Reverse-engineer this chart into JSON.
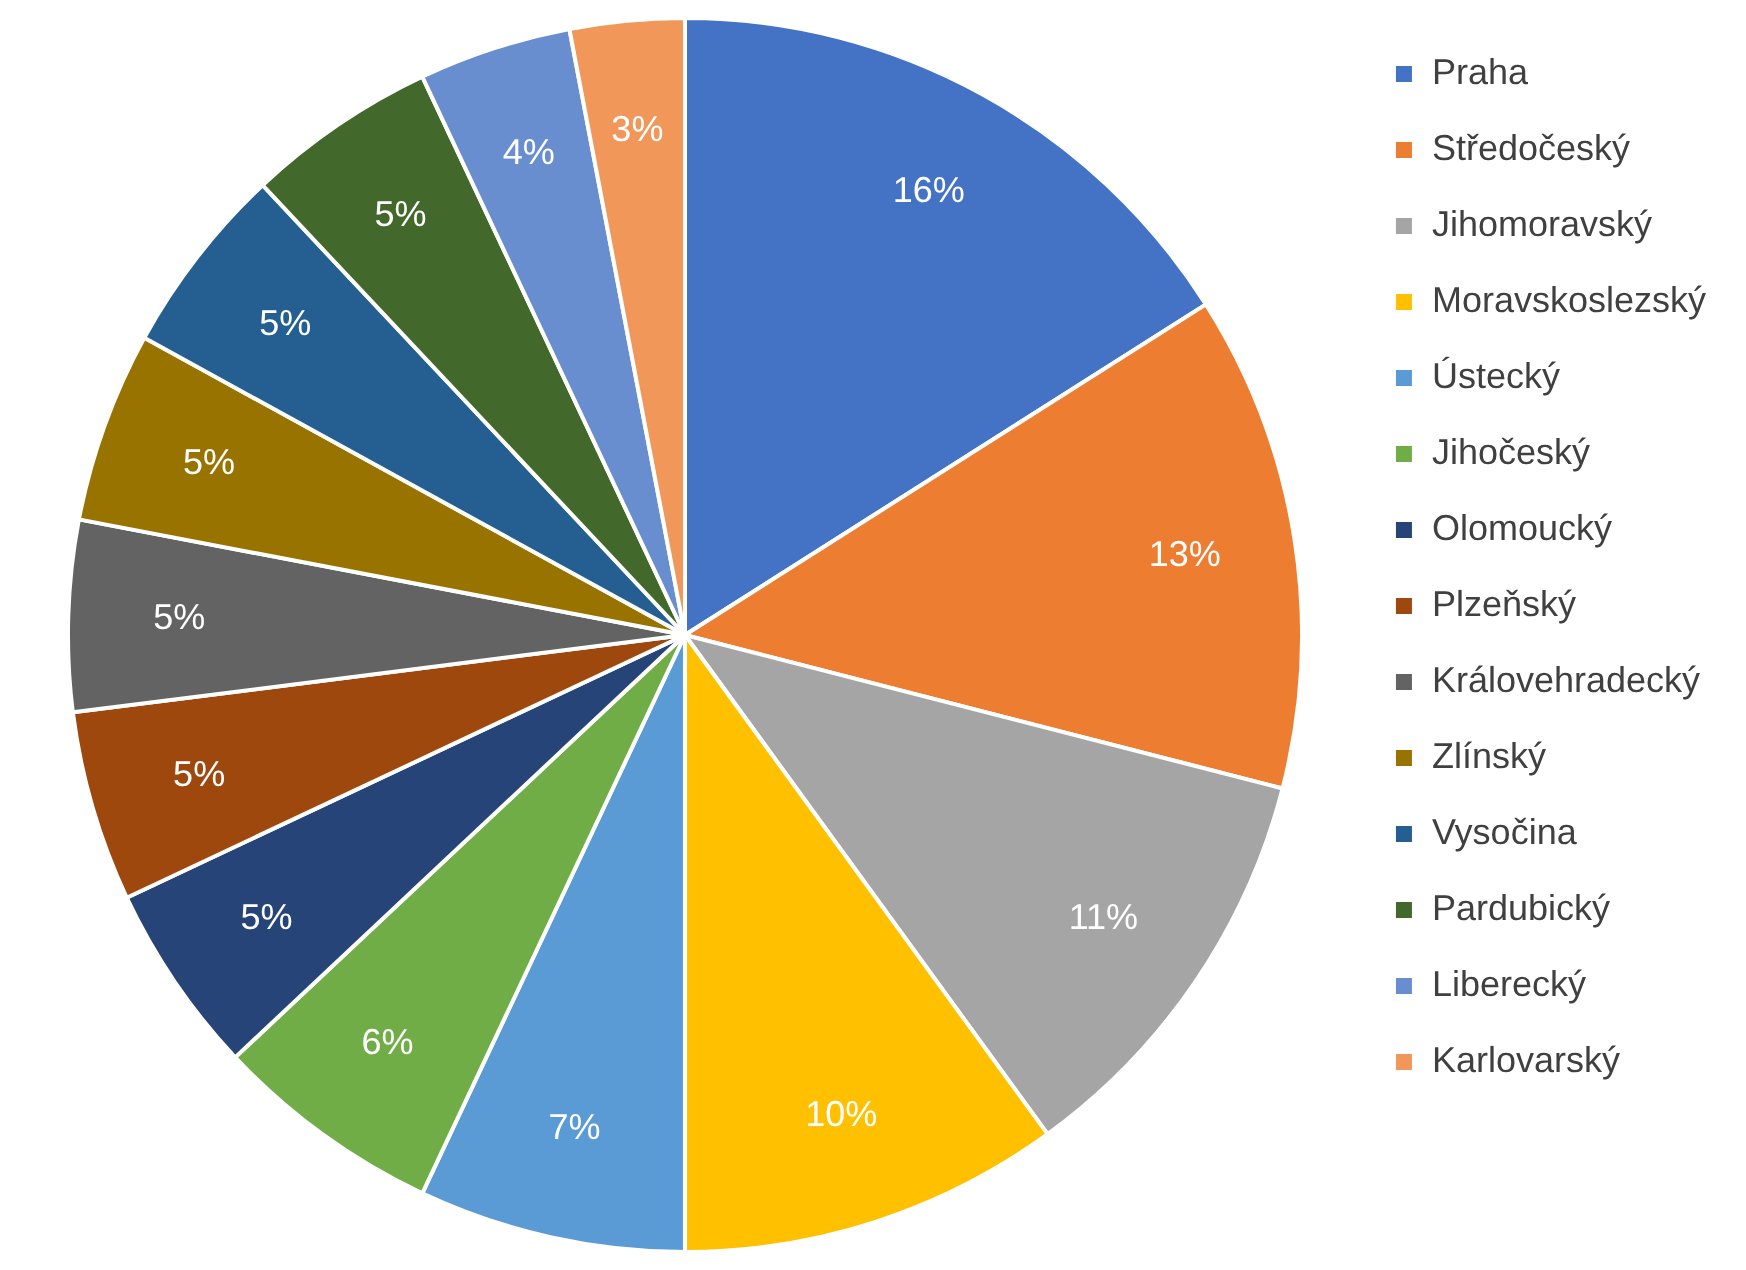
{
  "chart_data": {
    "type": "pie",
    "categories": [
      "Praha",
      "Středočeský",
      "Jihomoravský",
      "Moravskoslezský",
      "Ústecký",
      "Jihočeský",
      "Olomoucký",
      "Plzeňský",
      "Královehradecký",
      "Zlínský",
      "Vysočina",
      "Pardubický",
      "Liberecký",
      "Karlovarský"
    ],
    "values": [
      16,
      13,
      11,
      10,
      7,
      6,
      5,
      5,
      5,
      5,
      5,
      5,
      4,
      3
    ],
    "value_labels": [
      "16%",
      "13%",
      "11%",
      "10%",
      "7%",
      "6%",
      "5%",
      "5%",
      "5%",
      "5%",
      "5%",
      "5%",
      "4%",
      "3%"
    ],
    "colors": [
      "#4472c4",
      "#ed7d31",
      "#a5a5a5",
      "#ffc000",
      "#5b9bd5",
      "#70ad47",
      "#264478",
      "#9e480e",
      "#636363",
      "#997300",
      "#255e91",
      "#43682b",
      "#698ed0",
      "#f1975a"
    ],
    "legend": "right"
  }
}
